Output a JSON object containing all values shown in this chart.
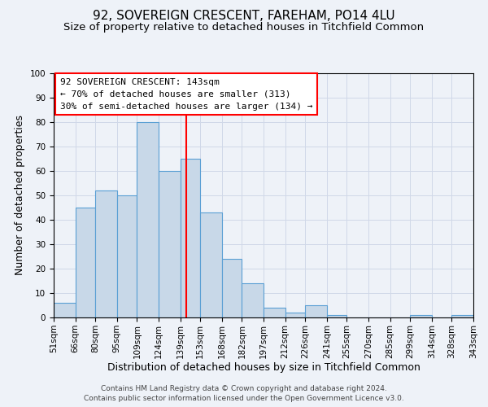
{
  "title": "92, SOVEREIGN CRESCENT, FAREHAM, PO14 4LU",
  "subtitle": "Size of property relative to detached houses in Titchfield Common",
  "xlabel": "Distribution of detached houses by size in Titchfield Common",
  "ylabel": "Number of detached properties",
  "bin_edges": [
    51,
    66,
    80,
    95,
    109,
    124,
    139,
    153,
    168,
    182,
    197,
    212,
    226,
    241,
    255,
    270,
    285,
    299,
    314,
    328,
    343
  ],
  "bar_heights": [
    6,
    45,
    52,
    50,
    80,
    60,
    65,
    43,
    24,
    14,
    4,
    2,
    5,
    1,
    0,
    0,
    0,
    1,
    0,
    1
  ],
  "bar_color": "#c8d8e8",
  "bar_edge_color": "#5a9fd4",
  "bar_linewidth": 0.8,
  "vline_x": 143,
  "vline_color": "red",
  "vline_linewidth": 1.5,
  "ylim": [
    0,
    100
  ],
  "yticks": [
    0,
    10,
    20,
    30,
    40,
    50,
    60,
    70,
    80,
    90,
    100
  ],
  "grid_color": "#d0d8e8",
  "annotation_title": "92 SOVEREIGN CRESCENT: 143sqm",
  "annotation_line1": "← 70% of detached houses are smaller (313)",
  "annotation_line2": "30% of semi-detached houses are larger (134) →",
  "annotation_box_color": "white",
  "annotation_box_edge_color": "red",
  "footer_line1": "Contains HM Land Registry data © Crown copyright and database right 2024.",
  "footer_line2": "Contains public sector information licensed under the Open Government Licence v3.0.",
  "bg_color": "#eef2f8",
  "plot_bg_color": "#eef2f8",
  "title_fontsize": 11,
  "subtitle_fontsize": 9.5,
  "xlabel_fontsize": 9,
  "ylabel_fontsize": 9,
  "tick_fontsize": 7.5,
  "annotation_fontsize": 8,
  "footer_fontsize": 6.5
}
